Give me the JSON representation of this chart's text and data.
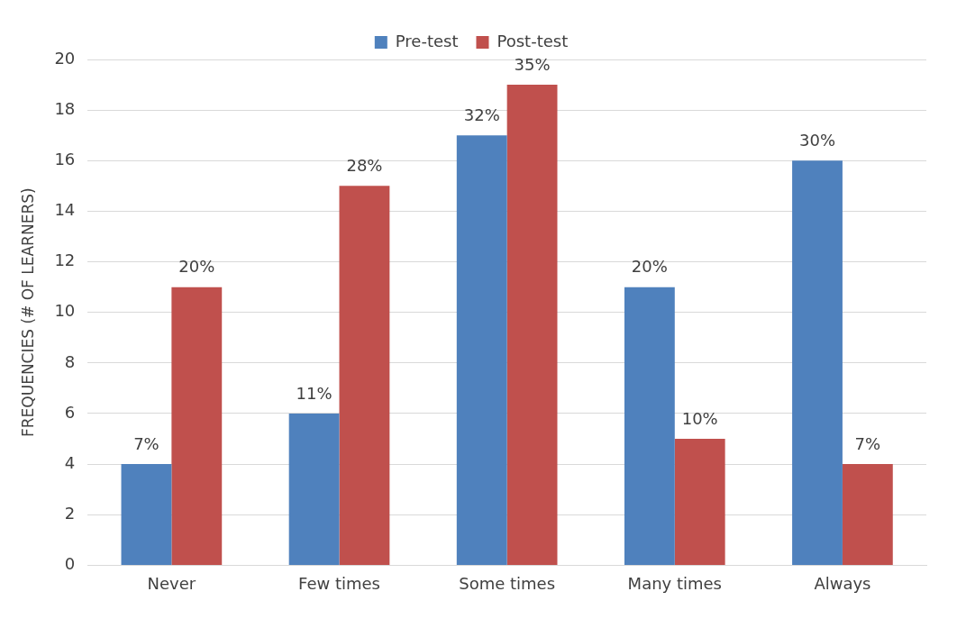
{
  "chart_data": {
    "type": "bar",
    "ylabel": "FREQUENCIES (# OF LEARNERS)",
    "categories": [
      "Never",
      "Few times",
      "Some times",
      "Many times",
      "Always"
    ],
    "series": [
      {
        "name": "Pre-test",
        "color": "#4f81bd",
        "values": [
          4,
          6,
          17,
          11,
          16
        ]
      },
      {
        "name": "Post-test",
        "color": "#c0504d",
        "values": [
          11,
          15,
          19,
          5,
          4
        ]
      }
    ],
    "annotations": [
      {
        "text": "7%",
        "x": "Never",
        "y": 4
      },
      {
        "text": "11%",
        "x": "Few times",
        "y": 6
      },
      {
        "text": "32%",
        "x": "Some times",
        "y": 17
      },
      {
        "text": "20%",
        "x": "Many times",
        "y": 11
      },
      {
        "text": "30%",
        "x": "Always",
        "y": 16
      },
      {
        "text": "20%",
        "x": "Never",
        "y": 11
      },
      {
        "text": "28%",
        "x": "Few times",
        "y": 15
      },
      {
        "text": "35%",
        "x": "Some times",
        "y": 19
      },
      {
        "text": "10%",
        "x": "Many times",
        "y": 5
      },
      {
        "text": "7%",
        "x": "Always",
        "y": 4
      }
    ],
    "ylim": [
      0,
      20
    ],
    "yticks": [
      0,
      2,
      4,
      6,
      8,
      10,
      12,
      14,
      16,
      18,
      20
    ],
    "grid": "y",
    "legend": "top"
  }
}
